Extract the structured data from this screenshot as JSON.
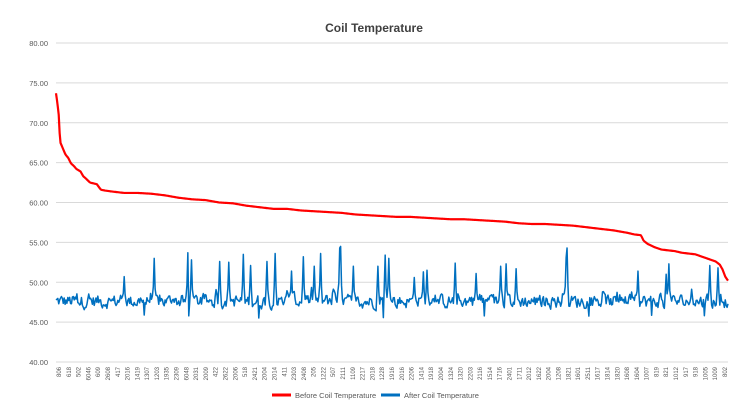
{
  "chart_data": {
    "type": "line",
    "title": "Coil Temperature",
    "xlabel": "",
    "ylabel": "",
    "ylim": [
      40,
      80
    ],
    "y_tick_step": 5,
    "y_tick_format": "0.00",
    "grid": "horizontal",
    "legend_position": "bottom",
    "x_tick_labels": [
      "806",
      "618",
      "502",
      "6046",
      "609",
      "2608",
      "417",
      "2016",
      "1419",
      "1307",
      "1203",
      "1935",
      "2309",
      "6048",
      "2031",
      "2009",
      "422",
      "2622",
      "2006",
      "518",
      "2421",
      "2004",
      "2014",
      "411",
      "2303",
      "2408",
      "205",
      "1222",
      "507",
      "2111",
      "1109",
      "2217",
      "2018",
      "1228",
      "1916",
      "2016",
      "2206",
      "1414",
      "1918",
      "2004",
      "1324",
      "1320",
      "2203",
      "2116",
      "1514",
      "1716",
      "2401",
      "1711",
      "2012",
      "1622",
      "2004",
      "1208",
      "1821",
      "1601",
      "2511",
      "1617",
      "1814",
      "1820",
      "1608",
      "1604",
      "1007",
      "819",
      "821",
      "1012",
      "917",
      "918",
      "1005",
      "1009",
      "802"
    ],
    "series": [
      {
        "name": "Before Coil Temperature",
        "color": "#ff0000",
        "description_points": [
          [
            0,
            73.7
          ],
          [
            1,
            72.5
          ],
          [
            2,
            71.0
          ],
          [
            3,
            67.6
          ],
          [
            5,
            66.8
          ],
          [
            7,
            66.0
          ],
          [
            9,
            65.6
          ],
          [
            11,
            64.9
          ],
          [
            13,
            64.6
          ],
          [
            15,
            64.2
          ],
          [
            18,
            63.9
          ],
          [
            20,
            63.3
          ],
          [
            22,
            63.0
          ],
          [
            25,
            62.5
          ],
          [
            30,
            62.3
          ],
          [
            33,
            61.6
          ],
          [
            36,
            61.5
          ],
          [
            40,
            61.4
          ],
          [
            45,
            61.3
          ],
          [
            50,
            61.2
          ],
          [
            60,
            61.2
          ],
          [
            70,
            61.1
          ],
          [
            80,
            60.9
          ],
          [
            90,
            60.6
          ],
          [
            100,
            60.4
          ],
          [
            110,
            60.3
          ],
          [
            120,
            60.0
          ],
          [
            130,
            59.9
          ],
          [
            140,
            59.6
          ],
          [
            150,
            59.4
          ],
          [
            160,
            59.2
          ],
          [
            170,
            59.2
          ],
          [
            180,
            59.0
          ],
          [
            190,
            58.9
          ],
          [
            200,
            58.8
          ],
          [
            210,
            58.7
          ],
          [
            220,
            58.5
          ],
          [
            230,
            58.4
          ],
          [
            240,
            58.3
          ],
          [
            250,
            58.2
          ],
          [
            260,
            58.2
          ],
          [
            270,
            58.1
          ],
          [
            280,
            58.0
          ],
          [
            290,
            57.9
          ],
          [
            300,
            57.9
          ],
          [
            310,
            57.8
          ],
          [
            320,
            57.7
          ],
          [
            330,
            57.6
          ],
          [
            340,
            57.4
          ],
          [
            350,
            57.3
          ],
          [
            360,
            57.3
          ],
          [
            370,
            57.2
          ],
          [
            380,
            57.1
          ],
          [
            390,
            56.9
          ],
          [
            400,
            56.7
          ],
          [
            410,
            56.5
          ],
          [
            420,
            56.2
          ],
          [
            425,
            56.0
          ],
          [
            430,
            55.9
          ],
          [
            432,
            55.2
          ],
          [
            435,
            54.8
          ],
          [
            440,
            54.4
          ],
          [
            445,
            54.1
          ],
          [
            450,
            54.0
          ],
          [
            455,
            53.9
          ],
          [
            460,
            53.7
          ],
          [
            465,
            53.6
          ],
          [
            470,
            53.5
          ],
          [
            475,
            53.2
          ],
          [
            480,
            52.9
          ],
          [
            485,
            52.6
          ],
          [
            488,
            52.2
          ],
          [
            490,
            51.6
          ],
          [
            492,
            50.7
          ],
          [
            494,
            50.2
          ]
        ]
      },
      {
        "name": "After Coil Temperature",
        "color": "#0070c0",
        "min": 45.0,
        "max": 54.5,
        "peaks": [
          [
            75,
            50.7
          ],
          [
            108,
            53.0
          ],
          [
            145,
            53.7
          ],
          [
            149,
            52.8
          ],
          [
            180,
            52.6
          ],
          [
            190,
            52.5
          ],
          [
            206,
            53.5
          ],
          [
            214,
            52.1
          ],
          [
            232,
            52.6
          ],
          [
            241,
            53.6
          ],
          [
            259,
            51.4
          ],
          [
            272,
            53.2
          ],
          [
            284,
            52.0
          ],
          [
            291,
            53.6
          ],
          [
            312,
            54.3
          ],
          [
            313,
            54.5
          ],
          [
            327,
            52.0
          ],
          [
            354,
            52.0
          ],
          [
            362,
            53.4
          ],
          [
            366,
            53.0
          ],
          [
            394,
            50.6
          ],
          [
            404,
            51.3
          ],
          [
            408,
            51.5
          ],
          [
            439,
            52.4
          ],
          [
            462,
            51.1
          ],
          [
            489,
            52.0
          ],
          [
            495,
            52.3
          ],
          [
            506,
            51.7
          ],
          [
            561,
            53.1
          ],
          [
            562,
            54.3
          ],
          [
            640,
            51.4
          ],
          [
            671,
            51.0
          ],
          [
            674,
            52.3
          ],
          [
            719,
            52.1
          ],
          [
            728,
            51.8
          ]
        ]
      }
    ]
  }
}
